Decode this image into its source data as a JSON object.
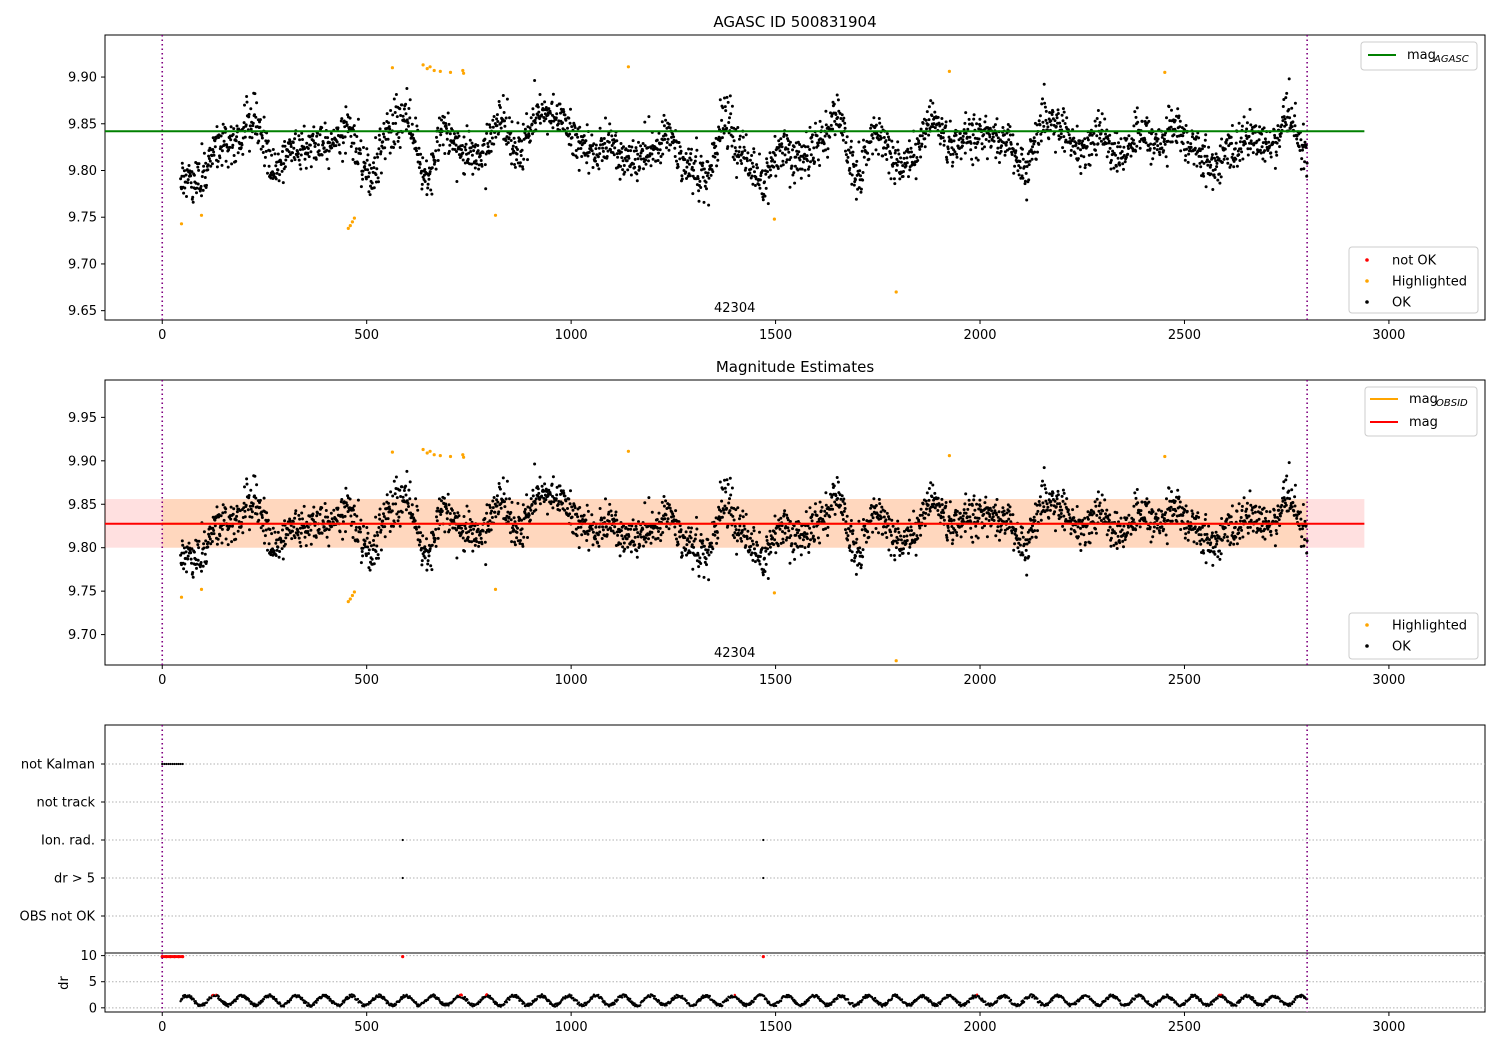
{
  "panels": {
    "top": {
      "title": "AGASC ID 500831904",
      "obsid_label": "42304",
      "xticks": [
        0,
        500,
        1000,
        1500,
        2000,
        2500,
        3000
      ],
      "xlim": [
        -140,
        3235
      ],
      "yticks": [
        9.65,
        9.7,
        9.75,
        9.8,
        9.85,
        9.9
      ],
      "ylim": [
        9.64,
        9.945
      ],
      "agasc_mag": 9.842,
      "line_color": "#008000",
      "legend_lines": [
        {
          "label": "mag",
          "sub": "AGASC",
          "color": "#008000"
        }
      ],
      "legend_points": [
        {
          "label": "not OK",
          "color": "#ff0000"
        },
        {
          "label": "Highlighted",
          "color": "#ffa500"
        },
        {
          "label": "OK",
          "color": "#000000"
        }
      ]
    },
    "middle": {
      "title": "Magnitude Estimates",
      "obsid_label": "42304",
      "xticks": [
        0,
        500,
        1000,
        1500,
        2000,
        2500,
        3000
      ],
      "xlim": [
        -140,
        3235
      ],
      "yticks": [
        9.7,
        9.75,
        9.8,
        9.85,
        9.9,
        9.95
      ],
      "ylim": [
        9.665,
        9.993
      ],
      "obsid_mag": 9.8275,
      "mag": 9.8275,
      "band_obsid": [
        9.8,
        9.856
      ],
      "band_mag": [
        9.8,
        9.856
      ],
      "legend_lines": [
        {
          "label": "mag",
          "sub": "OBSID",
          "color": "#ffa500"
        },
        {
          "label": "mag",
          "sub": "",
          "color": "#ff0000"
        }
      ],
      "legend_points": [
        {
          "label": "Highlighted",
          "color": "#ffa500"
        },
        {
          "label": "OK",
          "color": "#000000"
        }
      ]
    },
    "flags": {
      "categories": [
        "not Kalman",
        "not track",
        "Ion. rad.",
        "dr > 5",
        "OBS not OK"
      ],
      "points": {
        "not Kalman": [
          [
            0,
            50
          ]
        ],
        "not track": [],
        "Ion. rad.": [
          [
            588,
            588
          ],
          [
            1470,
            1470
          ]
        ],
        "dr > 5": [
          [
            588,
            588
          ],
          [
            1470,
            1470
          ]
        ],
        "OBS not OK": []
      }
    },
    "dr": {
      "ylabel": "dr",
      "yticks": [
        0,
        5,
        10
      ],
      "ylim": [
        -0.8,
        10.5
      ],
      "xticks": [
        0,
        500,
        1000,
        1500,
        2000,
        2500,
        3000
      ],
      "xlim": [
        -140,
        3235
      ]
    }
  },
  "chart_data": [
    {
      "type": "scatter",
      "title": "AGASC ID 500831904",
      "xlabel": "",
      "ylabel": "",
      "xlim": [
        -140,
        3235
      ],
      "ylim": [
        9.64,
        9.945
      ],
      "observation": {
        "obsid": "42304",
        "start": 0,
        "stop": 2800
      },
      "series": [
        {
          "name": "OK",
          "color": "#000000",
          "description_points": "approx. 2700 samples, t 45-2800, mag 9.76-9.90"
        },
        {
          "name": "Highlighted",
          "color": "#ffa500",
          "points": [
            [
              47,
              9.743
            ],
            [
              96,
              9.752
            ],
            [
              455,
              9.738
            ],
            [
              460,
              9.741
            ],
            [
              465,
              9.745
            ],
            [
              470,
              9.749
            ],
            [
              563,
              9.91
            ],
            [
              638,
              9.913
            ],
            [
              648,
              9.909
            ],
            [
              655,
              9.911
            ],
            [
              665,
              9.907
            ],
            [
              680,
              9.906
            ],
            [
              705,
              9.905
            ],
            [
              735,
              9.907
            ],
            [
              737,
              9.904
            ],
            [
              815,
              9.752
            ],
            [
              1140,
              9.911
            ],
            [
              1497,
              9.748
            ],
            [
              1795,
              9.67
            ],
            [
              1925,
              9.906
            ],
            [
              2452,
              9.905
            ]
          ]
        },
        {
          "name": "not OK",
          "color": "#ff0000",
          "points": []
        }
      ],
      "lines": [
        {
          "name": "mag_AGASC",
          "value": 9.842,
          "color": "#008000"
        }
      ]
    },
    {
      "type": "scatter",
      "title": "Magnitude Estimates",
      "xlim": [
        -140,
        3235
      ],
      "ylim": [
        9.665,
        9.993
      ],
      "series": [
        {
          "name": "OK",
          "color": "#000000"
        },
        {
          "name": "Highlighted",
          "color": "#ffa500"
        }
      ],
      "lines": [
        {
          "name": "mag_OBSID",
          "value": 9.8275,
          "color": "#ffa500",
          "band": [
            9.8,
            9.856
          ]
        },
        {
          "name": "mag",
          "value": 9.8275,
          "color": "#ff0000",
          "band": [
            9.8,
            9.856
          ]
        }
      ]
    },
    {
      "type": "scatter",
      "title": "",
      "categories": [
        "not Kalman",
        "not track",
        "Ion. rad.",
        "dr > 5",
        "OBS not OK"
      ],
      "series": [
        {
          "name": "not Kalman",
          "x_ranges": [
            [
              0,
              50
            ]
          ]
        },
        {
          "name": "Ion. rad.",
          "x": [
            588,
            1470
          ]
        },
        {
          "name": "dr > 5",
          "x": [
            588,
            1470
          ]
        }
      ]
    },
    {
      "type": "scatter",
      "ylabel": "dr",
      "ylim": [
        -0.8,
        10.5
      ],
      "xlim": [
        -140,
        3235
      ],
      "series": [
        {
          "name": "dr",
          "color": "#000000",
          "description_points": "dr mostly 0.5-3 for t 45-2800"
        },
        {
          "name": "dr flagged",
          "color": "#ff0000",
          "points": [
            [
              0,
              9.8
            ],
            [
              10,
              9.8
            ],
            [
              20,
              9.8
            ],
            [
              30,
              9.8
            ],
            [
              40,
              9.8
            ],
            [
              50,
              9.8
            ],
            [
              588,
              9.8
            ],
            [
              1470,
              9.8
            ]
          ]
        }
      ]
    }
  ]
}
